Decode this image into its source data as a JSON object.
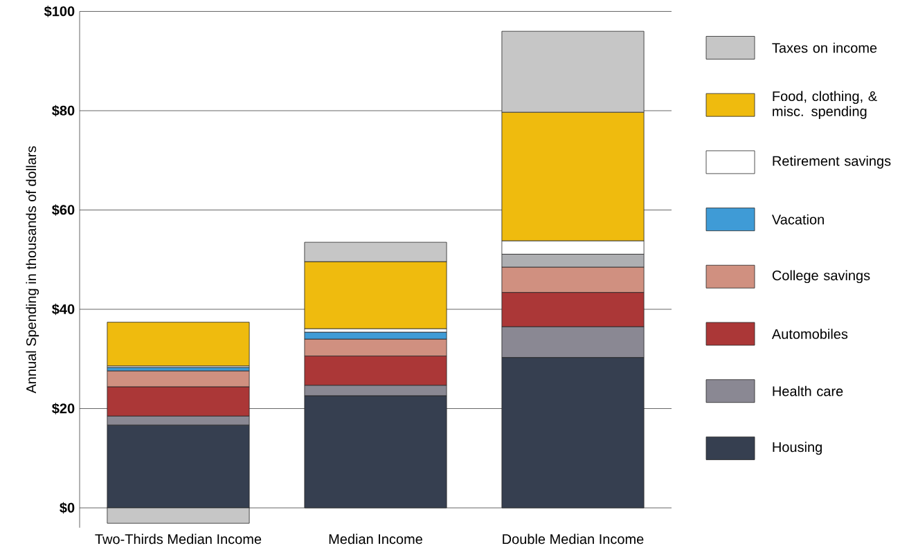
{
  "chart_data": {
    "type": "bar",
    "stacked": true,
    "ylabel": "Annual Spending in thousands of dollars",
    "categories": [
      "Two-Thirds Median Income",
      "Median Income",
      "Double Median Income"
    ],
    "series": [
      {
        "name": "Housing",
        "color": "#363f50",
        "values": [
          16.7,
          22.6,
          30.3
        ]
      },
      {
        "name": "Health care",
        "color": "#8a8893",
        "values": [
          1.8,
          2.1,
          6.2
        ]
      },
      {
        "name": "Automobiles",
        "color": "#ab3737",
        "values": [
          5.9,
          5.9,
          6.9
        ]
      },
      {
        "name": "College savings",
        "color": "#d09080",
        "values": [
          3.2,
          3.4,
          5.1
        ]
      },
      {
        "name": "Vacation",
        "color": "#3f9bd6",
        "colors": [
          "#3f9bd6",
          "#3f9bd6",
          "#aeafb2"
        ],
        "values": [
          0.7,
          1.4,
          2.6
        ]
      },
      {
        "name": "Retirement savings",
        "color": "#ffffff",
        "values": [
          0.3,
          0.7,
          2.7
        ]
      },
      {
        "name": "Food, clothing, & misc. spending",
        "color": "#efbb0e",
        "values": [
          8.8,
          13.5,
          25.9
        ]
      },
      {
        "name": "Taxes on income",
        "color": "#c6c6c6",
        "values": [
          -3.1,
          3.9,
          16.3
        ]
      }
    ],
    "ylim": [
      -4,
      100
    ],
    "yticks": [
      {
        "value": 0,
        "label": "$0"
      },
      {
        "value": 20,
        "label": "$20"
      },
      {
        "value": 40,
        "label": "$40"
      },
      {
        "value": 60,
        "label": "$60"
      },
      {
        "value": 80,
        "label": "$80"
      },
      {
        "value": 100,
        "label": "$100"
      }
    ],
    "grid": "y",
    "legend": "right"
  }
}
